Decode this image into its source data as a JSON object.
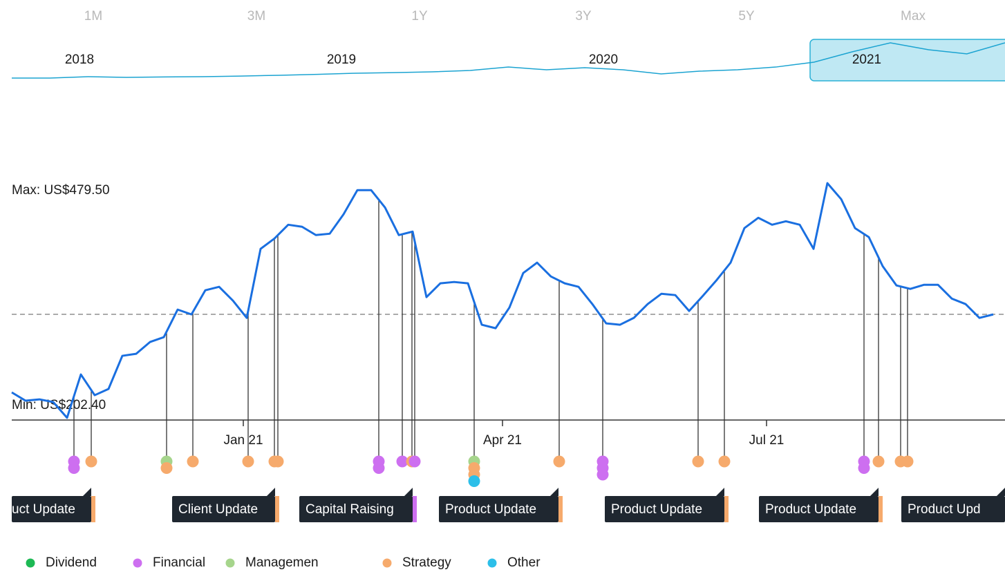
{
  "chart_data": {
    "type": "line",
    "range_buttons": [
      "1M",
      "3M",
      "1Y",
      "3Y",
      "5Y",
      "Max"
    ],
    "navigator": {
      "years": [
        "2018",
        "2019",
        "2020",
        "2021"
      ],
      "values": [
        56,
        56,
        73,
        65,
        70,
        73,
        80,
        89,
        100,
        113,
        120,
        129,
        145,
        185,
        153,
        177,
        153,
        105,
        137,
        153,
        185,
        242,
        363,
        468,
        387,
        339,
        468
      ],
      "ylim": [
        0,
        500
      ],
      "color": "#1aa3d1"
    },
    "series": [
      {
        "name": "Price",
        "color": "#1a6fe0",
        "values": [
          232.4,
          222.6,
          224.2,
          221.0,
          202.4,
          253.6,
          229.1,
          236.5,
          275.6,
          278.0,
          291.9,
          297.6,
          330.2,
          324.5,
          353.0,
          357.1,
          340.8,
          320.4,
          401.9,
          414.1,
          430.4,
          428.0,
          418.2,
          419.8,
          442.7,
          471.2,
          471.2,
          450.8,
          418.2,
          422.3,
          344.9,
          361.2,
          362.8,
          361.2,
          312.3,
          308.2,
          332.6,
          373.4,
          385.6,
          369.3,
          361.2,
          357.1,
          336.7,
          313.9,
          312.3,
          320.4,
          336.7,
          348.9,
          347.3,
          328.6,
          346.5,
          365.2,
          385.6,
          426.4,
          438.6,
          430.4,
          434.5,
          430.4,
          401.9,
          479.5,
          460.6,
          426.4,
          415.8,
          381.5,
          358.7,
          354.6,
          359.5,
          359.5,
          343.2,
          336.7,
          320.4,
          324.5
        ]
      }
    ],
    "ylim": [
      190,
      500
    ],
    "xlim": [
      0,
      71
    ],
    "xticks": [
      {
        "value": 16.75,
        "label": "Jan 21"
      },
      {
        "value": 35.5,
        "label": "Apr 21"
      },
      {
        "value": 54.6,
        "label": "Jul 21"
      }
    ],
    "reference_line": 324.6,
    "annotations": [
      "Max: US$479.50",
      "Min: US$202.40"
    ],
    "legend": [
      {
        "name": "Dividend",
        "color": "#1db954"
      },
      {
        "name": "Financial",
        "color": "#cd6ff0"
      },
      {
        "name": "Managemen",
        "color": "#a6d58c"
      },
      {
        "name": "Strategy",
        "color": "#f6aa6c"
      },
      {
        "name": "Other",
        "color": "#2cbfe9"
      }
    ],
    "events": [
      {
        "x": 4.5,
        "categories": [
          1,
          1
        ]
      },
      {
        "x": 5.75,
        "categories": [
          3
        ]
      },
      {
        "x": 11.2,
        "categories": [
          2,
          3
        ]
      },
      {
        "x": 13.1,
        "categories": [
          3
        ]
      },
      {
        "x": 17.1,
        "categories": [
          3
        ]
      },
      {
        "x": 19.0,
        "categories": [
          3
        ]
      },
      {
        "x": 19.25,
        "categories": [
          3
        ]
      },
      {
        "x": 26.55,
        "categories": [
          1,
          1
        ]
      },
      {
        "x": 28.25,
        "categories": [
          1
        ]
      },
      {
        "x": 28.95,
        "categories": [
          3
        ]
      },
      {
        "x": 29.15,
        "categories": [
          1
        ]
      },
      {
        "x": 33.45,
        "categories": [
          2,
          3,
          3,
          4
        ]
      },
      {
        "x": 39.6,
        "categories": [
          3
        ]
      },
      {
        "x": 42.75,
        "categories": [
          1,
          1,
          1
        ]
      },
      {
        "x": 49.65,
        "categories": [
          3
        ]
      },
      {
        "x": 51.55,
        "categories": [
          3
        ]
      },
      {
        "x": 61.65,
        "categories": [
          1,
          1
        ]
      },
      {
        "x": 62.7,
        "categories": [
          3
        ]
      },
      {
        "x": 64.3,
        "categories": [
          3
        ]
      },
      {
        "x": 64.8,
        "categories": [
          3
        ]
      }
    ],
    "event_labels": [
      "uct Update",
      "Client Update",
      "Capital Raising",
      "Product Update",
      "Product Update",
      "Product Update",
      "Product Upd"
    ]
  }
}
